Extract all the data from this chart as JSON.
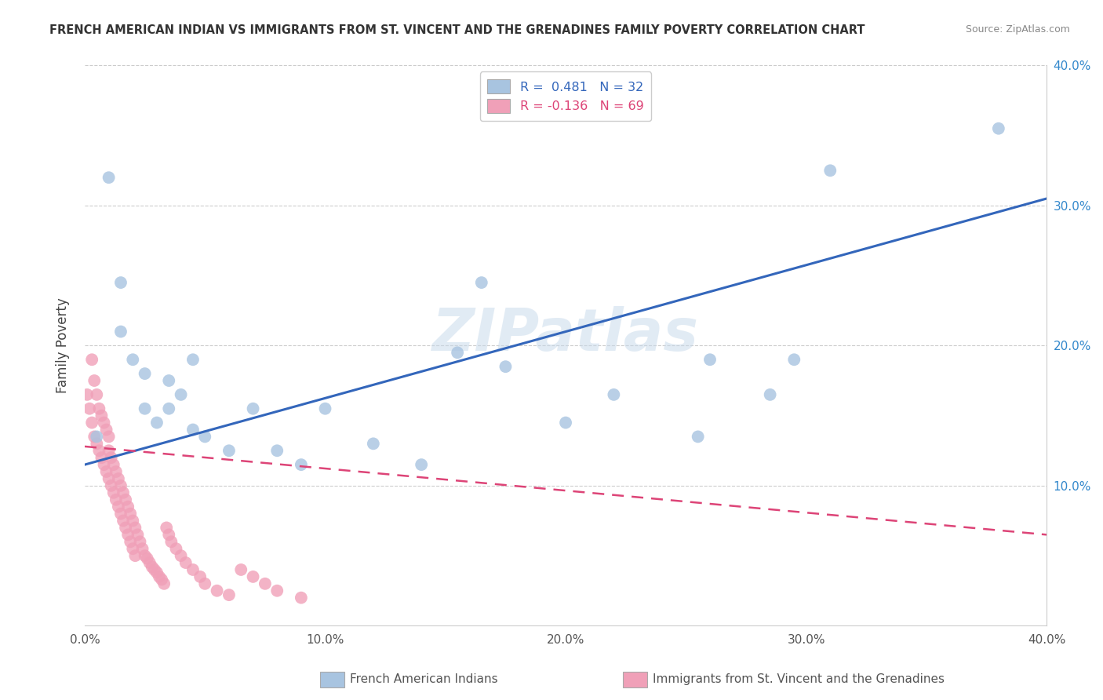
{
  "title": "FRENCH AMERICAN INDIAN VS IMMIGRANTS FROM ST. VINCENT AND THE GRENADINES FAMILY POVERTY CORRELATION CHART",
  "source": "Source: ZipAtlas.com",
  "ylabel": "Family Poverty",
  "xlim": [
    0.0,
    0.4
  ],
  "ylim": [
    0.0,
    0.4
  ],
  "xtick_values": [
    0.0,
    0.1,
    0.2,
    0.3,
    0.4
  ],
  "xtick_labels": [
    "0.0%",
    "10.0%",
    "20.0%",
    "30.0%",
    "40.0%"
  ],
  "ytick_values": [
    0.1,
    0.2,
    0.3,
    0.4
  ],
  "ytick_labels": [
    "10.0%",
    "20.0%",
    "30.0%",
    "40.0%"
  ],
  "blue_R": 0.481,
  "blue_N": 32,
  "pink_R": -0.136,
  "pink_N": 69,
  "blue_color": "#a8c4e0",
  "pink_color": "#f0a0b8",
  "blue_line_color": "#3366bb",
  "pink_line_color": "#dd4477",
  "watermark": "ZIPatlas",
  "legend_blue_label": "French American Indians",
  "legend_pink_label": "Immigrants from St. Vincent and the Grenadines",
  "blue_x": [
    0.005,
    0.01,
    0.015,
    0.02,
    0.025,
    0.03,
    0.035,
    0.04,
    0.045,
    0.05,
    0.06,
    0.07,
    0.08,
    0.09,
    0.1,
    0.12,
    0.14,
    0.155,
    0.165,
    0.175,
    0.2,
    0.22,
    0.255,
    0.26,
    0.285,
    0.295,
    0.31,
    0.38,
    0.015,
    0.025,
    0.035,
    0.045
  ],
  "blue_y": [
    0.135,
    0.32,
    0.21,
    0.19,
    0.155,
    0.145,
    0.175,
    0.165,
    0.14,
    0.135,
    0.125,
    0.155,
    0.125,
    0.115,
    0.155,
    0.13,
    0.115,
    0.195,
    0.245,
    0.185,
    0.145,
    0.165,
    0.135,
    0.19,
    0.165,
    0.19,
    0.325,
    0.355,
    0.245,
    0.18,
    0.155,
    0.19
  ],
  "pink_x": [
    0.001,
    0.002,
    0.003,
    0.003,
    0.004,
    0.004,
    0.005,
    0.005,
    0.006,
    0.006,
    0.007,
    0.007,
    0.008,
    0.008,
    0.009,
    0.009,
    0.01,
    0.01,
    0.01,
    0.011,
    0.011,
    0.012,
    0.012,
    0.013,
    0.013,
    0.014,
    0.014,
    0.015,
    0.015,
    0.016,
    0.016,
    0.017,
    0.017,
    0.018,
    0.018,
    0.019,
    0.019,
    0.02,
    0.02,
    0.021,
    0.021,
    0.022,
    0.023,
    0.024,
    0.025,
    0.026,
    0.027,
    0.028,
    0.029,
    0.03,
    0.031,
    0.032,
    0.033,
    0.034,
    0.035,
    0.036,
    0.038,
    0.04,
    0.042,
    0.045,
    0.048,
    0.05,
    0.055,
    0.06,
    0.065,
    0.07,
    0.075,
    0.08,
    0.09
  ],
  "pink_y": [
    0.165,
    0.155,
    0.145,
    0.19,
    0.135,
    0.175,
    0.13,
    0.165,
    0.125,
    0.155,
    0.12,
    0.15,
    0.115,
    0.145,
    0.11,
    0.14,
    0.105,
    0.125,
    0.135,
    0.1,
    0.12,
    0.095,
    0.115,
    0.09,
    0.11,
    0.085,
    0.105,
    0.08,
    0.1,
    0.075,
    0.095,
    0.07,
    0.09,
    0.065,
    0.085,
    0.06,
    0.08,
    0.055,
    0.075,
    0.05,
    0.07,
    0.065,
    0.06,
    0.055,
    0.05,
    0.048,
    0.045,
    0.042,
    0.04,
    0.038,
    0.035,
    0.033,
    0.03,
    0.07,
    0.065,
    0.06,
    0.055,
    0.05,
    0.045,
    0.04,
    0.035,
    0.03,
    0.025,
    0.022,
    0.04,
    0.035,
    0.03,
    0.025,
    0.02
  ],
  "blue_line_x": [
    0.0,
    0.4
  ],
  "blue_line_y": [
    0.115,
    0.305
  ],
  "pink_line_x": [
    0.0,
    0.4
  ],
  "pink_line_y": [
    0.128,
    0.065
  ]
}
